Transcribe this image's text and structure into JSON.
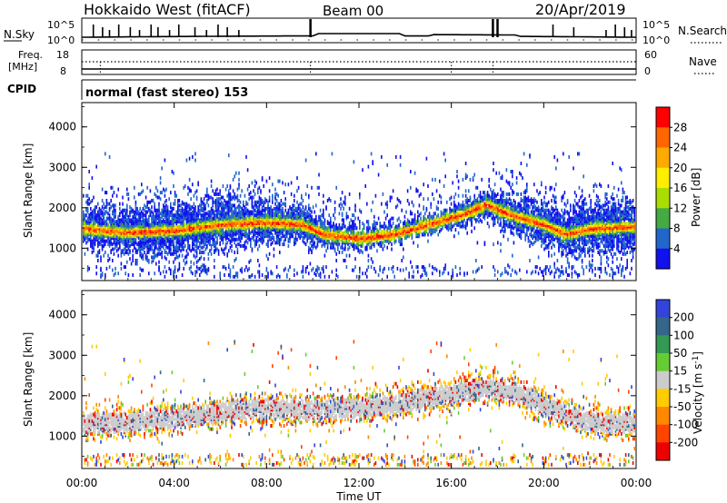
{
  "header": {
    "title": "Hokkaido West (fitACF)",
    "beam": "Beam 00",
    "date": "20/Apr/2019"
  },
  "status_panels": {
    "nsky": {
      "label": "N.Sky",
      "tick_top": "10^5",
      "tick_bottom": "10^0",
      "right_label": "N.Search",
      "right_tick_top": "10^5",
      "right_tick_bottom": "10^0"
    },
    "freq": {
      "label_line1": "Freq.",
      "label_line2": "[MHz]",
      "tick_top": "18",
      "tick_bottom": "8",
      "right_label": "Nave",
      "right_tick_top": "60",
      "right_tick_bottom": "0"
    },
    "cpid": {
      "label": "CPID",
      "text": "normal (fast stereo) 153"
    }
  },
  "x_axis": {
    "label": "Time UT",
    "ticks": [
      "00:00",
      "04:00",
      "08:00",
      "12:00",
      "16:00",
      "20:00",
      "00:00"
    ],
    "range_hours": [
      0,
      24
    ]
  },
  "power_colorbar": {
    "label": "Power [dB]",
    "ticks": [
      "28",
      "24",
      "20",
      "16",
      "12",
      "8",
      "4"
    ],
    "colors": [
      "#ff0000",
      "#ff6600",
      "#ffaa00",
      "#ffee00",
      "#aadd00",
      "#44aa44",
      "#2266cc",
      "#1111ee"
    ]
  },
  "velocity_colorbar": {
    "label": "Velocity [m s",
    "label_sup": "-1",
    "label_end": "]",
    "ticks": [
      "200",
      "100",
      "50",
      "15",
      "-15",
      "-50",
      "-100",
      "-200"
    ],
    "colors": [
      "#3344dd",
      "#336688",
      "#339955",
      "#66cc33",
      "#cccccc",
      "#ffcc00",
      "#ff8800",
      "#ff4400",
      "#ee0000"
    ]
  },
  "chart_data": [
    {
      "type": "heatmap",
      "name": "power",
      "ylabel": "Slant Range [km]",
      "yticks": [
        "1000",
        "2000",
        "3000",
        "4000"
      ],
      "ylim": [
        200,
        4600
      ],
      "xlim": [
        0,
        24
      ],
      "echo_band_center_km": [
        [
          0,
          1450
        ],
        [
          2,
          1350
        ],
        [
          4,
          1400
        ],
        [
          6,
          1550
        ],
        [
          8,
          1600
        ],
        [
          9.5,
          1550
        ],
        [
          10.5,
          1300
        ],
        [
          12,
          1200
        ],
        [
          13.5,
          1300
        ],
        [
          15,
          1550
        ],
        [
          16.5,
          1800
        ],
        [
          17.5,
          2050
        ],
        [
          18.5,
          1800
        ],
        [
          20,
          1550
        ],
        [
          21,
          1300
        ],
        [
          22,
          1450
        ],
        [
          24,
          1500
        ]
      ]
    },
    {
      "type": "heatmap",
      "name": "velocity",
      "ylabel": "Slant Range [km]",
      "yticks": [
        "1000",
        "2000",
        "3000",
        "4000"
      ],
      "ylim": [
        200,
        4600
      ],
      "xlim": [
        0,
        24
      ],
      "echo_band_center_km": [
        [
          0,
          1250
        ],
        [
          2,
          1300
        ],
        [
          4,
          1400
        ],
        [
          6,
          1550
        ],
        [
          8,
          1650
        ],
        [
          10,
          1600
        ],
        [
          12,
          1650
        ],
        [
          14,
          1800
        ],
        [
          16,
          2000
        ],
        [
          17.5,
          2150
        ],
        [
          19,
          2000
        ],
        [
          20,
          1700
        ],
        [
          22,
          1300
        ],
        [
          24,
          1250
        ]
      ]
    }
  ]
}
